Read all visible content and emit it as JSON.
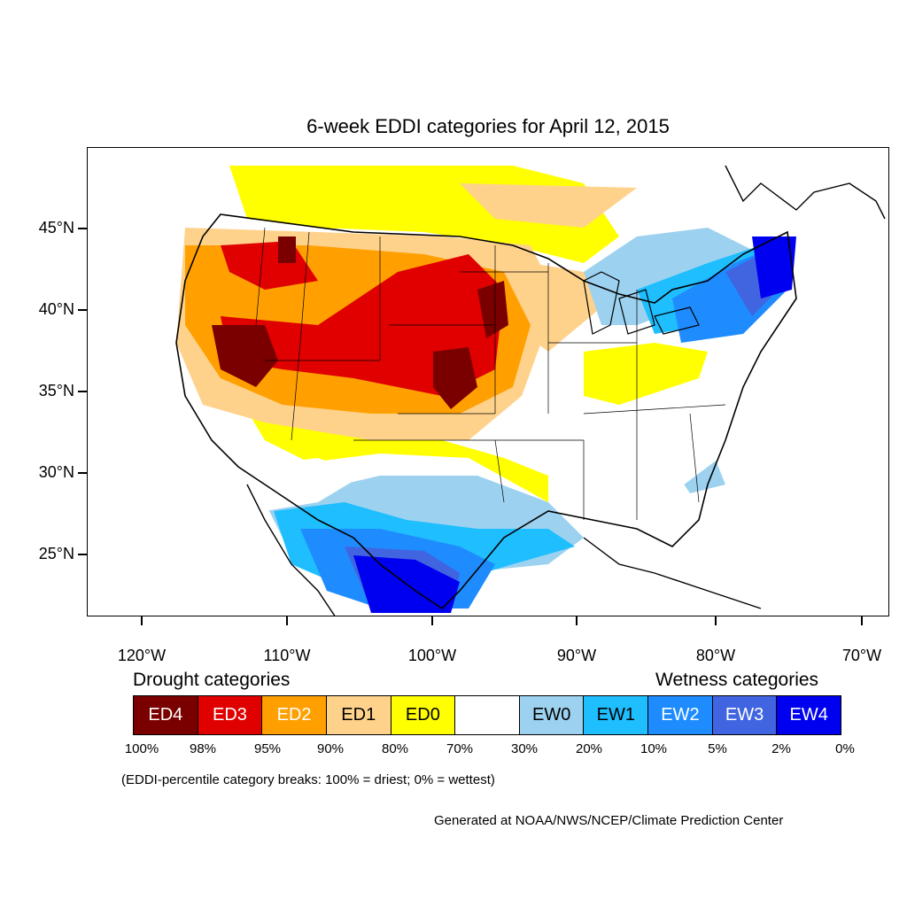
{
  "title": "6-week EDDI categories for April 12, 2015",
  "axes": {
    "y_labels": [
      "45°N",
      "40°N",
      "35°N",
      "30°N",
      "25°N"
    ],
    "x_labels": [
      "120°W",
      "110°W",
      "100°W",
      "90°W",
      "80°W",
      "70°W"
    ]
  },
  "legend": {
    "drought_heading": "Drought categories",
    "wetness_heading": "Wetness categories",
    "categories": [
      {
        "label": "ED4",
        "color": "#7a0000",
        "text_color": "#ffffff"
      },
      {
        "label": "ED3",
        "color": "#e00000",
        "text_color": "#ffffff"
      },
      {
        "label": "ED2",
        "color": "#ffa000",
        "text_color": "#ffffff"
      },
      {
        "label": "ED1",
        "color": "#ffd28c",
        "text_color": "#000000"
      },
      {
        "label": "ED0",
        "color": "#ffff00",
        "text_color": "#000000"
      },
      {
        "label": "",
        "color": "#ffffff",
        "text_color": "#000000"
      },
      {
        "label": "EW0",
        "color": "#9cd2f0",
        "text_color": "#000000"
      },
      {
        "label": "EW1",
        "color": "#1ebeff",
        "text_color": "#000000"
      },
      {
        "label": "EW2",
        "color": "#1e8cff",
        "text_color": "#ffffff"
      },
      {
        "label": "EW3",
        "color": "#4164e0",
        "text_color": "#ffffff"
      },
      {
        "label": "EW4",
        "color": "#0000f0",
        "text_color": "#ffffff"
      }
    ],
    "percent_breaks": [
      "100%",
      "98%",
      "95%",
      "90%",
      "80%",
      "70%",
      "30%",
      "20%",
      "10%",
      "5%",
      "2%",
      "0%"
    ]
  },
  "note": "(EDDI-percentile category breaks: 100% = driest; 0% = wettest)",
  "credit": "Generated at NOAA/NWS/NCEP/Climate Prediction Center"
}
